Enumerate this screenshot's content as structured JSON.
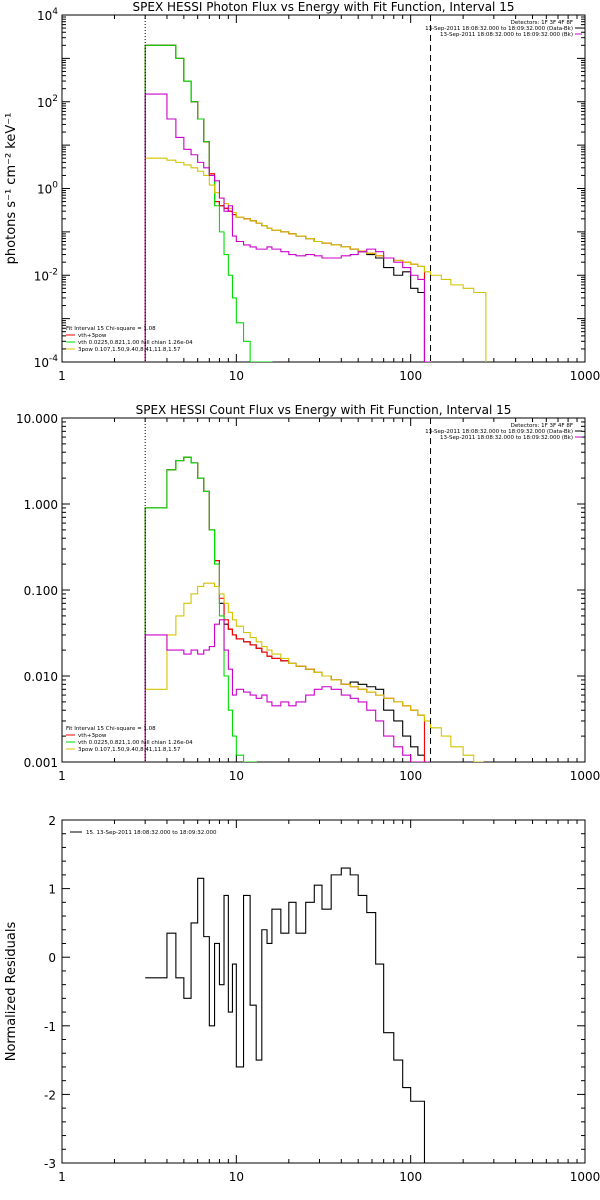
{
  "chart_data": [
    {
      "type": "line",
      "title": "SPEX HESSI Photon Flux vs Energy with Fit Function, Interval 15",
      "ylabel": "photons s⁻¹ cm⁻² keV⁻¹",
      "xscale": "log",
      "yscale": "log",
      "xlim": [
        1,
        1000
      ],
      "ylim": [
        0.0001,
        10000
      ],
      "xticks": [
        "1",
        "10",
        "100",
        "1000"
      ],
      "yticks": [
        "10^-4",
        "10^-2",
        "10^0",
        "10^2",
        "10^4"
      ],
      "vlines": [
        {
          "x": 3,
          "style": "dotted"
        },
        {
          "x": 130,
          "style": "dashed"
        }
      ],
      "legend_top_right": [
        "Detectors: 1F 3F 4F 8F",
        "13-Sep-2011 18:08:32.000 to 18:09:32.000 (Data-Bk)",
        "13-Sep-2011 18:08:32.000 to 18:09:32.000 (Bk)"
      ],
      "legend_bottom_left": [
        "Fit Interval 15   Chi-square = 1.08",
        "vth+3pow",
        "vth 0.0225,0.821,1.00  full chian 1.26e-04",
        "3pow 0.107,1.50,9.40,8.41,11.8,1.57"
      ],
      "series": [
        {
          "name": "Data-Bk",
          "color": "#000000",
          "edges": [
            3,
            3.5,
            4,
            4.5,
            5,
            5.5,
            6,
            6.5,
            7,
            7.5,
            8,
            8.5,
            9,
            9.5,
            10,
            11,
            12,
            13,
            14,
            15,
            16,
            18,
            20,
            22,
            25,
            28,
            31,
            35,
            40,
            45,
            50,
            56,
            63,
            70,
            80,
            90,
            100,
            110,
            120,
            130
          ],
          "values": [
            2000,
            2000,
            2000,
            1000,
            300,
            100,
            40,
            12,
            2,
            0.5,
            0.4,
            0.35,
            0.3,
            0.25,
            0.22,
            0.2,
            0.18,
            0.16,
            0.14,
            0.12,
            0.11,
            0.1,
            0.09,
            0.08,
            0.07,
            0.06,
            0.055,
            0.05,
            0.045,
            0.04,
            0.035,
            0.03,
            0.025,
            0.015,
            0.01,
            0.012,
            0.005,
            0.004,
            0.0001
          ]
        },
        {
          "name": "vth+3pow",
          "color": "#ff0000",
          "edges": [
            3,
            3.5,
            4,
            4.5,
            5,
            5.5,
            6,
            6.5,
            7,
            7.5,
            8,
            8.5,
            9,
            9.5,
            10,
            11,
            12,
            13,
            14,
            15,
            16,
            18,
            20,
            22,
            25,
            28,
            31,
            35,
            40,
            45,
            50,
            56,
            63,
            70,
            80,
            90,
            100,
            110,
            120,
            130
          ],
          "values": [
            2000,
            2000,
            2000,
            1000,
            300,
            100,
            40,
            12,
            2.2,
            0.5,
            0.4,
            0.35,
            0.3,
            0.25,
            0.22,
            0.2,
            0.18,
            0.16,
            0.14,
            0.12,
            0.11,
            0.1,
            0.09,
            0.08,
            0.07,
            0.06,
            0.055,
            0.05,
            0.045,
            0.04,
            0.036,
            0.032,
            0.028,
            0.025,
            0.022,
            0.02,
            0.018,
            0.016,
            0.0001
          ]
        },
        {
          "name": "vth",
          "color": "#00dd00",
          "edges": [
            3,
            3.5,
            4,
            4.5,
            5,
            5.5,
            6,
            6.5,
            7,
            7.5,
            8,
            8.5,
            9,
            9.5,
            10,
            11,
            12,
            13,
            14,
            15,
            16
          ],
          "values": [
            2000,
            2000,
            2000,
            1000,
            300,
            100,
            40,
            12,
            2,
            0.4,
            0.1,
            0.03,
            0.01,
            0.003,
            0.0008,
            0.0003,
            0.0001,
            0.0001,
            0.0001,
            0.0001
          ]
        },
        {
          "name": "3pow",
          "color": "#d4c400",
          "edges": [
            3,
            3.5,
            4,
            4.5,
            5,
            5.5,
            6,
            6.5,
            7,
            7.5,
            8,
            8.5,
            9,
            9.5,
            10,
            11,
            12,
            13,
            14,
            15,
            16,
            18,
            20,
            22,
            25,
            28,
            31,
            35,
            40,
            45,
            50,
            56,
            63,
            70,
            80,
            90,
            100,
            110,
            120,
            130,
            150,
            170,
            200,
            230,
            270
          ],
          "values": [
            5,
            5,
            4.5,
            4,
            3.5,
            3,
            2.5,
            2,
            1.2,
            0.8,
            0.6,
            0.45,
            0.35,
            0.28,
            0.22,
            0.2,
            0.18,
            0.16,
            0.14,
            0.12,
            0.11,
            0.1,
            0.09,
            0.08,
            0.07,
            0.06,
            0.055,
            0.05,
            0.045,
            0.04,
            0.036,
            0.032,
            0.028,
            0.025,
            0.022,
            0.02,
            0.018,
            0.016,
            0.012,
            0.01,
            0.008,
            0.006,
            0.005,
            0.004
          ]
        },
        {
          "name": "Bk",
          "color": "#cc00cc",
          "edges": [
            3,
            3.5,
            4,
            4.5,
            5,
            5.5,
            6,
            6.5,
            7,
            7.5,
            8,
            8.5,
            9,
            9.5,
            10,
            11,
            12,
            13,
            14,
            15,
            16,
            18,
            20,
            22,
            25,
            28,
            31,
            35,
            40,
            45,
            50,
            56,
            63,
            70,
            80,
            90,
            100,
            110,
            120,
            130
          ],
          "values": [
            150,
            150,
            40,
            15,
            8,
            6,
            4,
            3,
            2,
            1.5,
            0.6,
            0.3,
            0.4,
            0.08,
            0.06,
            0.05,
            0.045,
            0.04,
            0.04,
            0.045,
            0.04,
            0.035,
            0.03,
            0.028,
            0.03,
            0.028,
            0.025,
            0.025,
            0.028,
            0.03,
            0.035,
            0.04,
            0.035,
            0.025,
            0.02,
            0.015,
            0.01,
            0.008,
            0.0001
          ]
        }
      ]
    },
    {
      "type": "line",
      "title": "SPEX HESSI Count Flux vs Energy with Fit Function, Interval 15",
      "ylabel": "",
      "xscale": "log",
      "yscale": "log",
      "xlim": [
        1,
        1000
      ],
      "ylim": [
        0.001,
        10
      ],
      "xticks": [
        "1",
        "10",
        "100",
        "1000"
      ],
      "yticks": [
        "0.001",
        "0.010",
        "0.100",
        "1.000",
        "10.000"
      ],
      "vlines": [
        {
          "x": 3,
          "style": "dotted"
        },
        {
          "x": 130,
          "style": "dashed"
        }
      ],
      "legend_top_right": [
        "Detectors: 1F 3F 4F 8F",
        "13-Sep-2011 18:08:32.000 to 18:09:32.000 (Data-Bk)",
        "13-Sep-2011 18:08:32.000 to 18:09:32.000 (Bk)"
      ],
      "legend_bottom_left": [
        "Fit Interval 15   Chi-square = 1.08",
        "vth+3pow",
        "vth 0.0225,0.821,1.00  full chian 1.26e-04",
        "3pow 0.107,1.50,9.40,8.41,11.8,1.57"
      ],
      "series": [
        {
          "name": "Data-Bk",
          "color": "#000000",
          "edges": [
            3,
            3.5,
            4,
            4.5,
            5,
            5.5,
            6,
            6.5,
            7,
            7.5,
            8,
            8.5,
            9,
            9.5,
            10,
            11,
            12,
            13,
            14,
            15,
            16,
            18,
            20,
            22,
            25,
            28,
            31,
            35,
            40,
            45,
            50,
            56,
            63,
            70,
            80,
            90,
            100,
            110,
            120,
            130
          ],
          "values": [
            0.9,
            0.9,
            2.5,
            3.2,
            3.5,
            3.0,
            2.0,
            1.4,
            0.5,
            0.22,
            0.07,
            0.04,
            0.035,
            0.03,
            0.027,
            0.025,
            0.023,
            0.021,
            0.019,
            0.017,
            0.016,
            0.015,
            0.014,
            0.013,
            0.012,
            0.011,
            0.01,
            0.009,
            0.008,
            0.0085,
            0.008,
            0.0075,
            0.007,
            0.004,
            0.003,
            0.002,
            0.0015,
            0.0012,
            0.001
          ]
        },
        {
          "name": "vth+3pow",
          "color": "#ff0000",
          "edges": [
            3,
            3.5,
            4,
            4.5,
            5,
            5.5,
            6,
            6.5,
            7,
            7.5,
            8,
            8.5,
            9,
            9.5,
            10,
            11,
            12,
            13,
            14,
            15,
            16,
            18,
            20,
            22,
            25,
            28,
            31,
            35,
            40,
            45,
            50,
            56,
            63,
            70,
            80,
            90,
            100,
            110,
            120,
            130
          ],
          "values": [
            0.9,
            0.9,
            2.5,
            3.2,
            3.5,
            3.0,
            2.0,
            1.4,
            0.5,
            0.22,
            0.08,
            0.045,
            0.035,
            0.03,
            0.027,
            0.025,
            0.023,
            0.021,
            0.019,
            0.017,
            0.016,
            0.015,
            0.014,
            0.013,
            0.012,
            0.011,
            0.01,
            0.009,
            0.008,
            0.0075,
            0.007,
            0.0065,
            0.006,
            0.0055,
            0.005,
            0.0045,
            0.004,
            0.0035,
            0.001
          ]
        },
        {
          "name": "vth",
          "color": "#00dd00",
          "edges": [
            3,
            3.5,
            4,
            4.5,
            5,
            5.5,
            6,
            6.5,
            7,
            7.5,
            8,
            8.5,
            9,
            9.5,
            10,
            11,
            12,
            13
          ],
          "values": [
            0.9,
            0.9,
            2.5,
            3.2,
            3.5,
            3.0,
            2.0,
            1.4,
            0.5,
            0.2,
            0.05,
            0.01,
            0.004,
            0.002,
            0.0012,
            0.001,
            0.001
          ]
        },
        {
          "name": "3pow",
          "color": "#d4c400",
          "edges": [
            3,
            3.5,
            4,
            4.5,
            5,
            5.5,
            6,
            6.5,
            7,
            7.5,
            8,
            8.5,
            9,
            9.5,
            10,
            11,
            12,
            13,
            14,
            15,
            16,
            18,
            20,
            22,
            25,
            28,
            31,
            35,
            40,
            45,
            50,
            56,
            63,
            70,
            80,
            90,
            100,
            110,
            120,
            130,
            150,
            170,
            200,
            230,
            260
          ],
          "values": [
            0.007,
            0.007,
            0.03,
            0.05,
            0.07,
            0.09,
            0.11,
            0.12,
            0.12,
            0.11,
            0.09,
            0.07,
            0.055,
            0.045,
            0.038,
            0.032,
            0.028,
            0.025,
            0.022,
            0.02,
            0.018,
            0.016,
            0.014,
            0.013,
            0.012,
            0.011,
            0.01,
            0.009,
            0.008,
            0.0075,
            0.007,
            0.0065,
            0.006,
            0.0055,
            0.005,
            0.0045,
            0.004,
            0.0035,
            0.003,
            0.0025,
            0.002,
            0.0015,
            0.0012,
            0.001
          ]
        },
        {
          "name": "Bk",
          "color": "#cc00cc",
          "edges": [
            3,
            3.5,
            4,
            4.5,
            5,
            5.5,
            6,
            6.5,
            7,
            7.5,
            8,
            8.5,
            9,
            9.5,
            10,
            11,
            12,
            13,
            14,
            15,
            16,
            18,
            20,
            22,
            25,
            28,
            31,
            35,
            40,
            45,
            50,
            56,
            63,
            70,
            80,
            90,
            100,
            110,
            120,
            130
          ],
          "values": [
            0.03,
            0.03,
            0.02,
            0.02,
            0.018,
            0.02,
            0.018,
            0.02,
            0.022,
            0.04,
            0.045,
            0.02,
            0.012,
            0.006,
            0.007,
            0.0065,
            0.006,
            0.0055,
            0.006,
            0.005,
            0.0045,
            0.005,
            0.0045,
            0.005,
            0.006,
            0.007,
            0.0075,
            0.007,
            0.006,
            0.0055,
            0.005,
            0.004,
            0.003,
            0.002,
            0.0015,
            0.0012,
            0.001,
            0.001,
            0.001
          ]
        }
      ]
    },
    {
      "type": "line",
      "title": "",
      "ylabel": "Normalized Residuals",
      "xscale": "log",
      "yscale": "linear",
      "xlim": [
        1,
        1000
      ],
      "ylim": [
        -3,
        2
      ],
      "xticks": [
        "1",
        "10",
        "100",
        "1000"
      ],
      "yticks": [
        "-3",
        "-2",
        "-1",
        "0",
        "1",
        "2"
      ],
      "legend_top_left": [
        "15. 13-Sep-2011 18:08:32.000 to 18:09:32.000"
      ],
      "series": [
        {
          "name": "15. 13-Sep-2011 18:08:32.000 to 18:09:32.000",
          "color": "#000000",
          "edges": [
            3,
            4,
            4.5,
            5,
            5.5,
            6,
            6.5,
            7,
            7.5,
            8,
            8.5,
            9,
            9.5,
            10,
            11,
            12,
            13,
            14,
            15,
            16,
            18,
            20,
            22,
            25,
            28,
            31,
            35,
            40,
            45,
            50,
            56,
            63,
            70,
            80,
            90,
            100,
            110,
            120,
            130
          ],
          "values": [
            -0.3,
            0.35,
            -0.3,
            -0.6,
            0.5,
            1.15,
            0.3,
            -1.0,
            0.2,
            -0.4,
            0.9,
            -0.8,
            -0.1,
            -1.6,
            0.9,
            -0.7,
            -1.5,
            0.4,
            0.2,
            0.7,
            0.35,
            0.8,
            0.35,
            0.8,
            1.05,
            0.7,
            1.2,
            1.3,
            1.2,
            0.9,
            0.65,
            -0.1,
            -1.1,
            -1.5,
            -1.9,
            -2.1,
            -2.1,
            -3.0
          ]
        }
      ]
    }
  ]
}
